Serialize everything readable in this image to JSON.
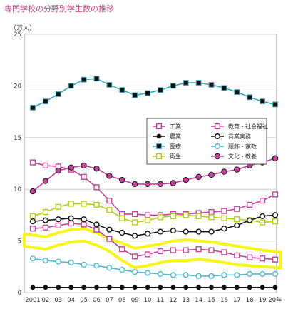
{
  "page_title": "専門学校の分野別学生数の推移",
  "chart_data": {
    "type": "line",
    "title": "専門学校の分野別学生数の推移",
    "ylabel": "（万人）",
    "xlabel": "",
    "ylim": [
      0,
      25
    ],
    "yticks": [
      0,
      5,
      10,
      15,
      20,
      25
    ],
    "grid": "horizontal",
    "legend_placement": "center-right",
    "x": [
      "2001",
      "02",
      "03",
      "04",
      "05",
      "06",
      "07",
      "08",
      "09",
      "10",
      "11",
      "12",
      "13",
      "14",
      "15",
      "16",
      "17",
      "18",
      "19",
      "20年"
    ],
    "series": [
      {
        "name": "工業",
        "color": "#c2449b",
        "marker": "square-open",
        "values": [
          12.6,
          12.3,
          12.2,
          11.9,
          11.2,
          10.2,
          8.9,
          7.6,
          7.6,
          7.5,
          7.5,
          7.6,
          7.6,
          7.7,
          7.8,
          7.9,
          8.1,
          8.5,
          8.9,
          9.5
        ]
      },
      {
        "name": "農業",
        "color": "#111111",
        "marker": "circle-filled",
        "values": [
          0.5,
          0.5,
          0.5,
          0.5,
          0.5,
          0.5,
          0.5,
          0.5,
          0.5,
          0.5,
          0.5,
          0.5,
          0.5,
          0.5,
          0.5,
          0.5,
          0.5,
          0.5,
          0.5,
          0.5
        ]
      },
      {
        "name": "医療",
        "color": "#3ba8b8",
        "marker": "square-filled",
        "values": [
          17.9,
          18.5,
          19.2,
          20.0,
          20.6,
          20.7,
          20.1,
          19.6,
          19.1,
          19.3,
          19.6,
          20.0,
          20.3,
          20.3,
          20.1,
          19.8,
          19.4,
          18.9,
          18.5,
          18.2
        ]
      },
      {
        "name": "衛生",
        "color": "#b5cc1a",
        "marker": "square-open",
        "values": [
          7.4,
          7.8,
          8.3,
          8.6,
          8.6,
          8.5,
          8.0,
          7.2,
          6.8,
          7.0,
          7.3,
          7.4,
          7.5,
          7.4,
          7.3,
          7.2,
          7.1,
          7.0,
          6.8,
          6.9
        ]
      },
      {
        "name": "教育・社会福祉",
        "color": "#c2449b",
        "marker": "square-open",
        "values": [
          6.2,
          6.3,
          6.5,
          6.7,
          6.6,
          6.1,
          5.2,
          4.2,
          3.5,
          3.7,
          4.0,
          4.1,
          4.1,
          4.2,
          4.1,
          3.9,
          3.6,
          3.4,
          3.3,
          3.2
        ]
      },
      {
        "name": "商業実務",
        "color": "#111111",
        "marker": "circle-open",
        "values": [
          6.9,
          7.0,
          7.1,
          7.2,
          7.1,
          6.6,
          6.1,
          5.8,
          5.5,
          5.7,
          5.9,
          6.0,
          5.9,
          5.9,
          5.9,
          6.2,
          6.5,
          7.0,
          7.4,
          7.5
        ]
      },
      {
        "name": "服飾・家政",
        "color": "#4fb8d0",
        "marker": "circle-open",
        "values": [
          3.3,
          3.1,
          3.0,
          2.9,
          2.7,
          2.6,
          2.4,
          2.2,
          2.0,
          1.9,
          1.8,
          1.7,
          1.7,
          1.6,
          1.6,
          1.7,
          1.7,
          1.8,
          1.8,
          1.8
        ]
      },
      {
        "name": "文化・教養",
        "color": "#c2449b",
        "marker": "circle-filled-dark",
        "values": [
          9.8,
          10.8,
          11.8,
          12.1,
          12.3,
          12.0,
          11.3,
          10.9,
          10.5,
          10.5,
          10.5,
          10.6,
          10.9,
          11.2,
          11.4,
          11.7,
          11.9,
          12.3,
          12.6,
          13.0
        ]
      }
    ],
    "annotation": {
      "type": "highlight-band",
      "color": "#f5f51a",
      "upper": [
        5.7,
        5.4,
        5.8,
        6.1,
        6.2,
        5.8,
        5.2,
        4.8,
        4.3,
        4.5,
        4.7,
        5.0,
        5.1,
        5.0,
        4.9,
        4.7,
        4.5,
        4.3,
        4.1,
        3.9
      ],
      "lower": [
        4.5,
        4.2,
        4.6,
        4.9,
        5.0,
        4.6,
        4.0,
        3.1,
        2.4,
        2.6,
        2.9,
        3.1,
        3.1,
        3.2,
        3.1,
        2.9,
        2.7,
        2.6,
        2.5,
        2.4
      ]
    }
  }
}
